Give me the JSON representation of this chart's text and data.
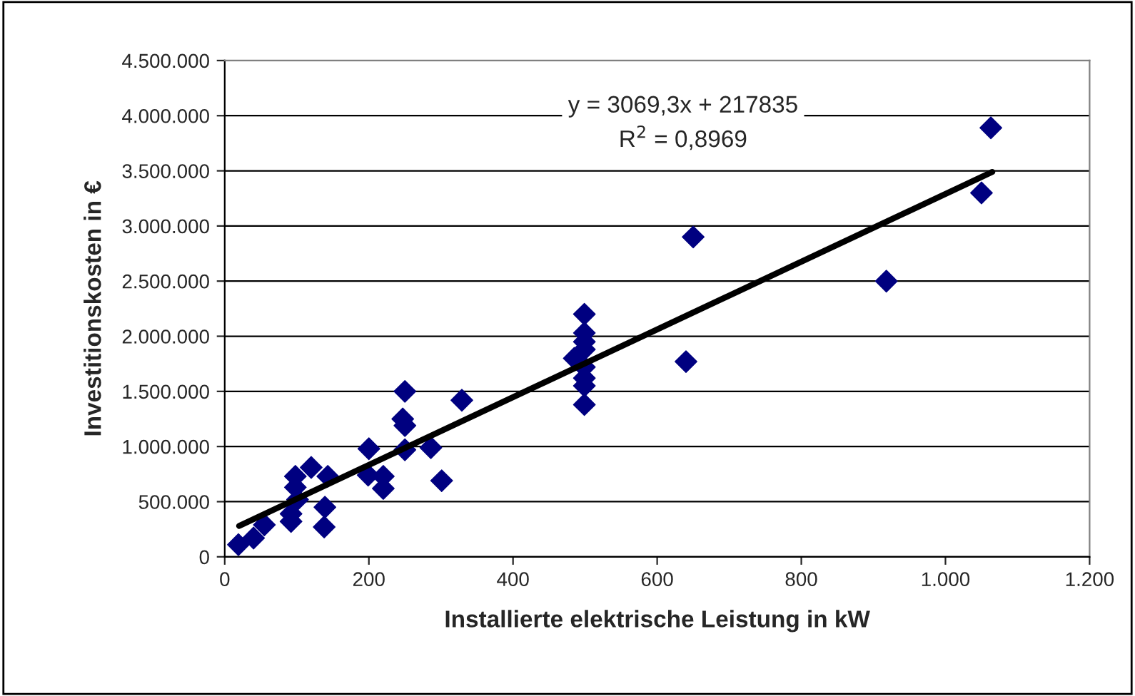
{
  "chart_data": {
    "type": "scatter",
    "xlabel": "Installierte elektrische Leistung in kW",
    "ylabel": "Investitionskosten in €",
    "xlim": [
      0,
      1200
    ],
    "xticks": [
      0,
      200,
      400,
      600,
      800,
      {
        "value": 1000,
        "label": "1.000"
      },
      {
        "value": 1200,
        "label": "1.200"
      }
    ],
    "ylim": [
      0,
      4500000
    ],
    "yticks": [
      {
        "value": 0,
        "label": "0"
      },
      {
        "value": 500000,
        "label": "500.000"
      },
      {
        "value": 1000000,
        "label": "1.000.000"
      },
      {
        "value": 1500000,
        "label": "1.500.000"
      },
      {
        "value": 2000000,
        "label": "2.000.000"
      },
      {
        "value": 2500000,
        "label": "2.500.000"
      },
      {
        "value": 3000000,
        "label": "3.000.000"
      },
      {
        "value": 3500000,
        "label": "3.500.000"
      },
      {
        "value": 4000000,
        "label": "4.000.000"
      },
      {
        "value": 4500000,
        "label": "4.500.000"
      }
    ],
    "grid": "y",
    "marker": "diamond",
    "annotations": [
      "y = 3069,3x + 217835\nR$^{2}$ = 0,8969"
    ],
    "series": [
      {
        "color": "#000080",
        "x": [
          19,
          40,
          55,
          92,
          92,
          138,
          139,
          98,
          98,
          101,
          120,
          143,
          200,
          199,
          220,
          220,
          250,
          247,
          250,
          250,
          286,
          301,
          329,
          499,
          499,
          499,
          499,
          485,
          499,
          499,
          499,
          499,
          650,
          640,
          918,
          1050,
          1063
        ],
        "values": [
          110000,
          170000,
          290000,
          320000,
          390000,
          270000,
          450000,
          730000,
          630000,
          520000,
          810000,
          730000,
          980000,
          740000,
          730000,
          620000,
          970000,
          1250000,
          1190000,
          1500000,
          990000,
          690000,
          1420000,
          2200000,
          2030000,
          1950000,
          1880000,
          1800000,
          1720000,
          1620000,
          1550000,
          1380000,
          2900000,
          1770000,
          2500000,
          3300000,
          3890000
        ]
      },
      {
        "type": "line",
        "color": "#000000",
        "marker": "none",
        "x": [
          20,
          1065
        ],
        "values": [
          280000,
          3490000
        ]
      }
    ]
  }
}
